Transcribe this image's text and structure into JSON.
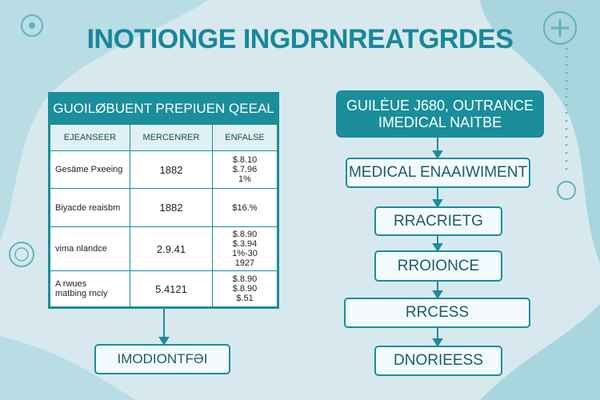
{
  "title": "INOTIONGE INGDRNREATGRDES",
  "table": {
    "title": "GUOILØBUENT PREPIUEN QEEAL",
    "columns": [
      "EJEANSEER",
      "MERCENRER",
      "ENFALSE"
    ],
    "rows": [
      [
        [
          "Gesäme Pxeeing"
        ],
        [
          "1882"
        ],
        [
          "$.8.10",
          "$.7.96",
          "1%"
        ]
      ],
      [
        [
          "Biyacde reaisbm"
        ],
        [
          "1882"
        ],
        [
          "$16.%"
        ]
      ],
      [
        [
          "vima nlandce"
        ],
        [
          "2.9.41"
        ],
        [
          "$.8.90",
          "$.3.94",
          "1%-30",
          "1927"
        ]
      ],
      [
        [
          "A rwues",
          "matbing rnciy"
        ],
        [
          "5.4121"
        ],
        [
          "$.8.90",
          "$.8.90",
          "$.51"
        ]
      ]
    ],
    "result": "IMODIONTFƏI"
  },
  "flow": {
    "header": [
      "GUILĖUE J680, OUTRANCE",
      "IMEDICAL NAITBE"
    ],
    "steps": [
      "MEDICAL ENAAIWIMENT",
      "RRACRIETG",
      "RROIONCE",
      "RRCESS",
      "DNORIEESS"
    ]
  }
}
